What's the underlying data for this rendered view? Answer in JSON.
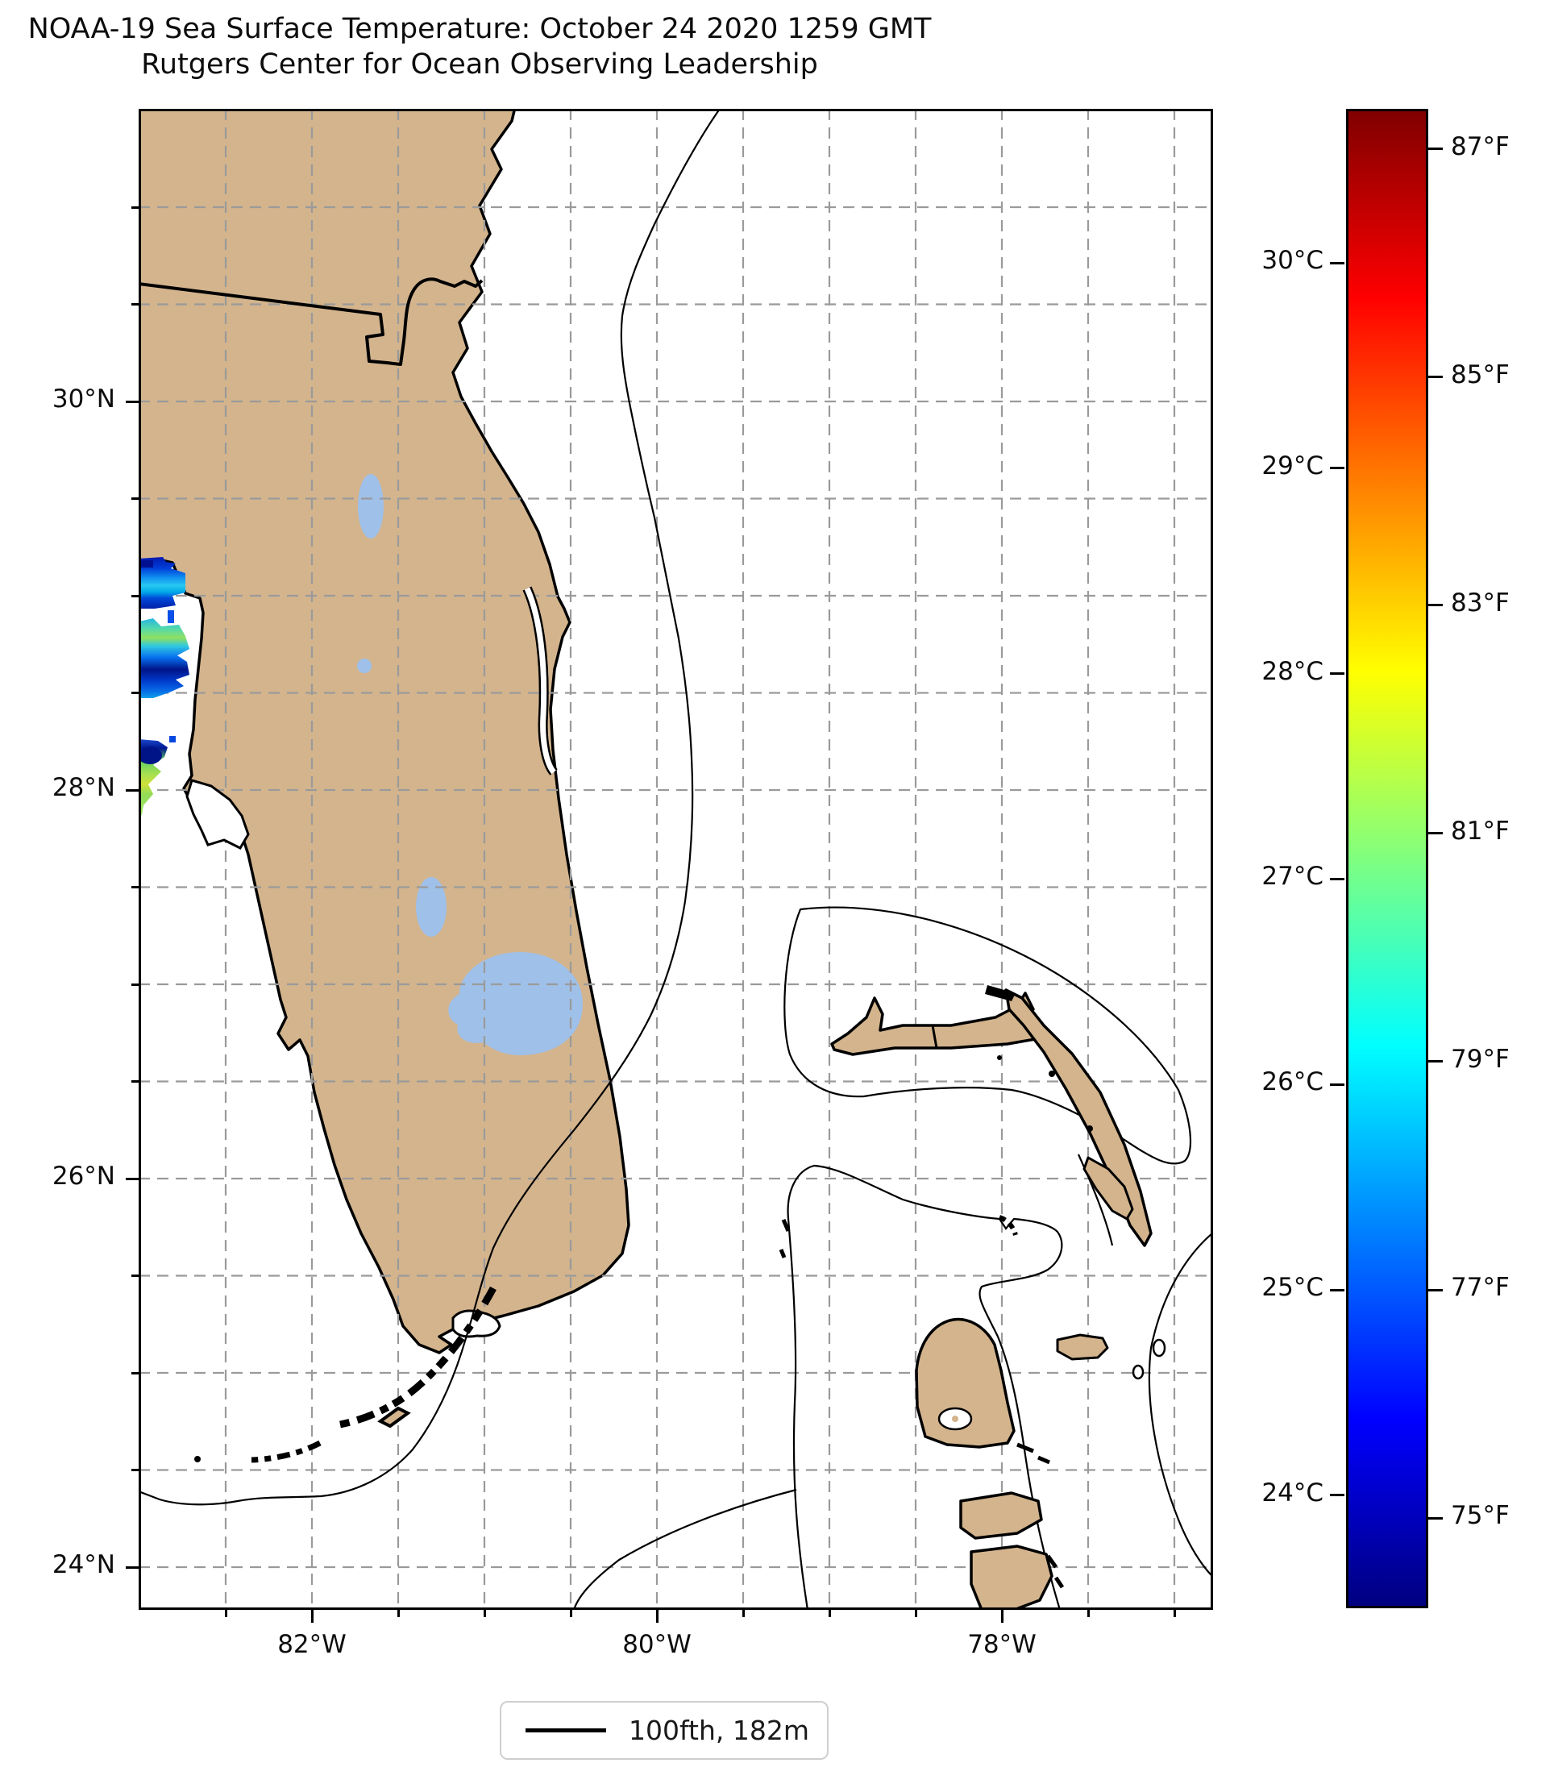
{
  "title": {
    "line1": "NOAA-19 Sea Surface Temperature: October 24 2020 1259 GMT",
    "line2": "Rutgers Center for Ocean Observing Leadership"
  },
  "map": {
    "x_axis": {
      "major_ticks": [
        {
          "label": "82°W",
          "lon": 82
        },
        {
          "label": "80°W",
          "lon": 80
        },
        {
          "label": "78°W",
          "lon": 78
        }
      ],
      "gridline_lons": [
        82.5,
        82.0,
        81.5,
        81.0,
        80.5,
        80.0,
        79.5,
        79.0,
        78.5,
        78.0,
        77.5,
        77.0
      ]
    },
    "y_axis": {
      "major_ticks": [
        {
          "label": "30°N",
          "lat": 30
        },
        {
          "label": "28°N",
          "lat": 28
        },
        {
          "label": "26°N",
          "lat": 26
        },
        {
          "label": "24°N",
          "lat": 24
        }
      ],
      "gridline_lats": [
        31.0,
        30.5,
        30.0,
        29.5,
        29.0,
        28.5,
        28.0,
        27.5,
        27.0,
        26.5,
        26.0,
        25.5,
        25.0,
        24.5,
        24.0
      ]
    },
    "extent": {
      "lon_west": 83.0,
      "lon_east": 76.78,
      "lat_north": 31.5,
      "lat_south": 23.78
    },
    "features": [
      "Florida peninsula",
      "Lake Okeechobee",
      "Florida Keys",
      "Little Bahama Bank",
      "Great Bahama Bank",
      "Andros",
      "Grand Bahama",
      "Abaco",
      "Eleuthera",
      "New Providence",
      "100-fathom depth contour"
    ]
  },
  "colorbar": {
    "celsius_ticks": [
      {
        "label": "30°C",
        "value": 30
      },
      {
        "label": "29°C",
        "value": 29
      },
      {
        "label": "28°C",
        "value": 28
      },
      {
        "label": "27°C",
        "value": 27
      },
      {
        "label": "26°C",
        "value": 26
      },
      {
        "label": "25°C",
        "value": 25
      },
      {
        "label": "24°C",
        "value": 24
      }
    ],
    "fahrenheit_ticks": [
      {
        "label": "87°F",
        "value": 87
      },
      {
        "label": "85°F",
        "value": 85
      },
      {
        "label": "83°F",
        "value": 83
      },
      {
        "label": "81°F",
        "value": 81
      },
      {
        "label": "79°F",
        "value": 79
      },
      {
        "label": "77°F",
        "value": 77
      },
      {
        "label": "75°F",
        "value": 75
      }
    ],
    "scale": {
      "tmin_c": 23.45,
      "tmax_c": 30.75
    },
    "colormap": "jet",
    "gradient_stops": [
      {
        "color": "#000080",
        "pct": 0
      },
      {
        "color": "#0000ff",
        "pct": 12.5
      },
      {
        "color": "#00ffff",
        "pct": 37.5
      },
      {
        "color": "#ffff00",
        "pct": 62.5
      },
      {
        "color": "#ff0000",
        "pct": 87.5
      },
      {
        "color": "#800000",
        "pct": 100
      }
    ]
  },
  "legend": {
    "items": [
      {
        "label": "100fth, 182m",
        "symbol": "line"
      }
    ]
  },
  "colors": {
    "land": "#d3b48d",
    "lake": "#9fc0e8",
    "grid": "#9a9a9a",
    "coast": "#000000",
    "contour": "#000000",
    "background": "#ffffff"
  },
  "chart_data": {
    "type": "heatmap",
    "title": "NOAA-19 Sea Surface Temperature: October 24 2020 1259 GMT",
    "subtitle": "Rutgers Center for Ocean Observing Leadership",
    "colormap": "jet",
    "value_range_c": [
      23.45,
      30.75
    ],
    "colorbar_ticks_c": [
      30,
      29,
      28,
      27,
      26,
      25,
      24
    ],
    "colorbar_ticks_f": [
      87,
      85,
      83,
      81,
      79,
      77,
      75
    ],
    "x_ticks": [
      "82°W",
      "80°W",
      "78°W"
    ],
    "y_ticks": [
      "30°N",
      "28°N",
      "26°N",
      "24°N"
    ],
    "grid": "dashed, every 0.5 degree",
    "legend": [
      "100fth, 182m depth contour"
    ],
    "observations": [
      {
        "area": "offshore NW Florida coast near 29.1N 82.9W",
        "sst_c": "24-26 (blue/cyan patch)"
      },
      {
        "area": "offshore west Florida coast near 28.7N 82.9W",
        "sst_c": "24-27 (cyan/blue with green streaks)"
      },
      {
        "area": "offshore Tampa near 28.0N 82.9W",
        "sst_c": "24-28.5 (green/yellow-green with navy blob)"
      }
    ]
  }
}
